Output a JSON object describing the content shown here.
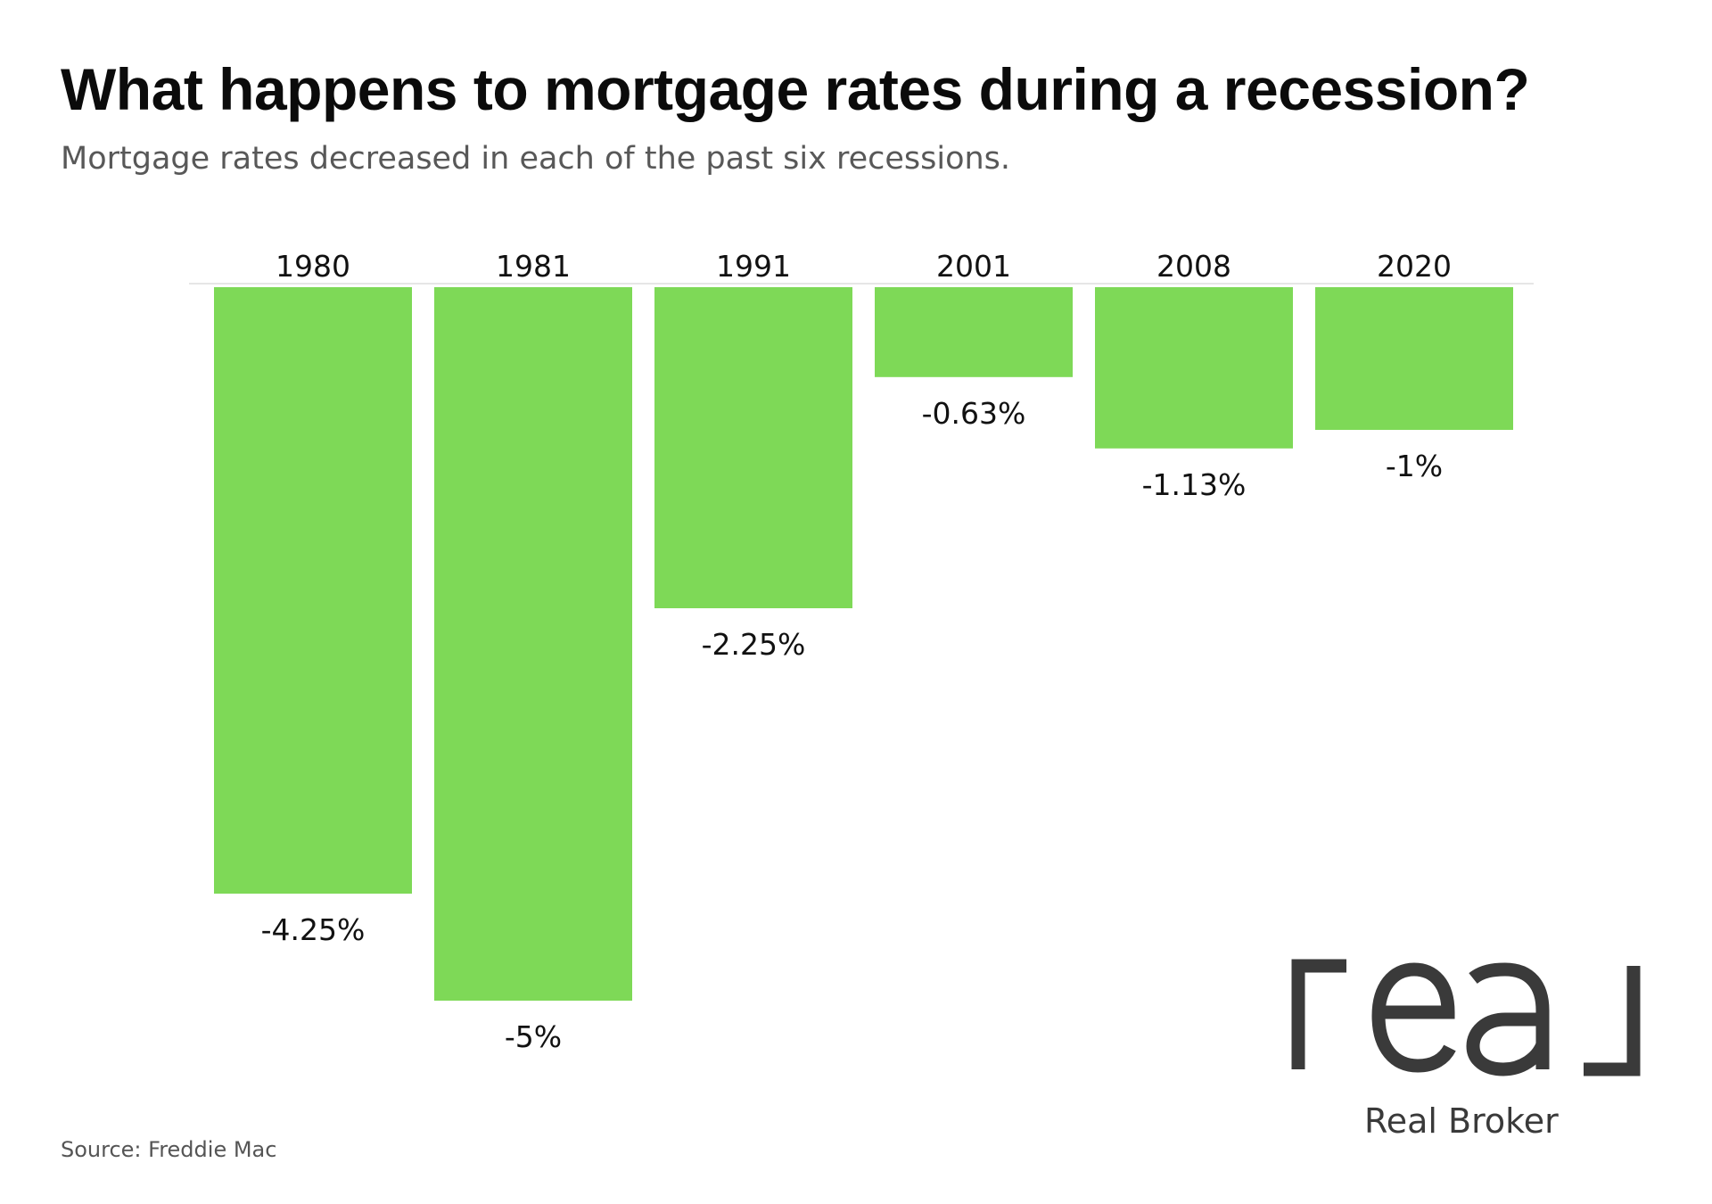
{
  "title": "What happens to mortgage rates during a recession?",
  "subtitle": "Mortgage rates decreased in each of the past six recessions.",
  "source": "Source: Freddie Mac",
  "brand": {
    "logo_text": "real",
    "name": "Real Broker",
    "logo_color": "#3a3a3a"
  },
  "chart_data": {
    "type": "bar",
    "orientation": "vertical",
    "categories": [
      "1980",
      "1981",
      "1991",
      "2001",
      "2008",
      "2020"
    ],
    "values": [
      -4.25,
      -5,
      -2.25,
      -0.63,
      -1.13,
      -1
    ],
    "data_labels": [
      "-4.25%",
      "-5%",
      "-2.25%",
      "-0.63%",
      "-1.13%",
      "-1%"
    ],
    "unit": "%",
    "ylim": [
      -5,
      0
    ],
    "category_labels_position": "top",
    "grid": false,
    "legend": false,
    "bar_color": "#7ED957"
  }
}
